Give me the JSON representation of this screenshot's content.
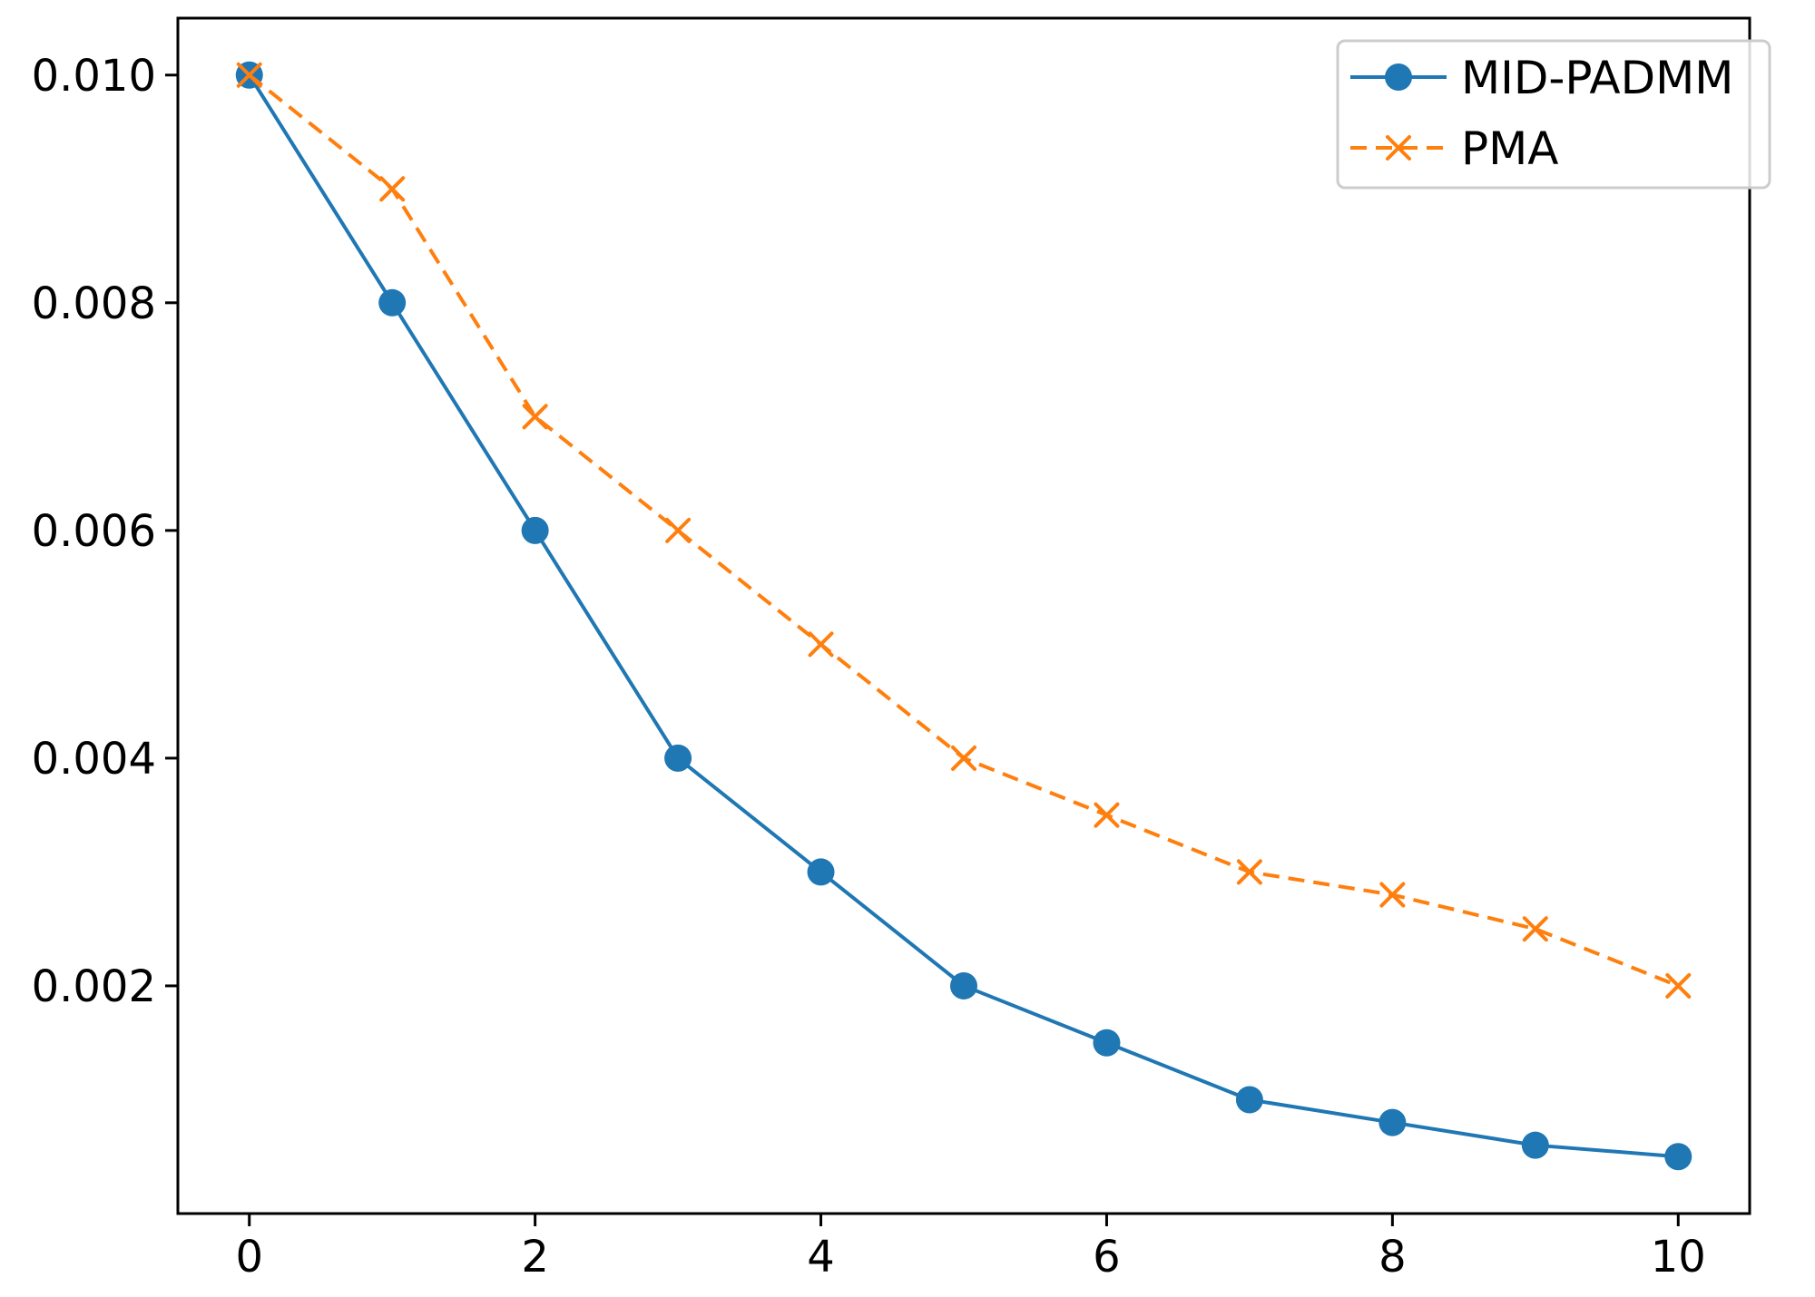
{
  "chart_data": {
    "type": "line",
    "title": "",
    "xlabel": "",
    "ylabel": "",
    "x": [
      0,
      1,
      2,
      3,
      4,
      5,
      6,
      7,
      8,
      9,
      10
    ],
    "xlim": [
      -0.5,
      10.5
    ],
    "ylim": [
      0.0,
      0.0105
    ],
    "x_ticks": [
      0,
      2,
      4,
      6,
      8,
      10
    ],
    "x_tick_labels": [
      "0",
      "2",
      "4",
      "6",
      "8",
      "10"
    ],
    "y_ticks": [
      0.002,
      0.004,
      0.006,
      0.008,
      0.01
    ],
    "y_tick_labels": [
      "0.002",
      "0.004",
      "0.006",
      "0.008",
      "0.010"
    ],
    "grid": false,
    "legend_position": "top-right",
    "series": [
      {
        "name": "MID-PADMM",
        "color": "#1f77b4",
        "line_style": "solid",
        "marker": "circle",
        "values": [
          0.01,
          0.008,
          0.006,
          0.004,
          0.003,
          0.002,
          0.0015,
          0.001,
          0.0008,
          0.0006,
          0.0005
        ]
      },
      {
        "name": "PMA",
        "color": "#ff7f0e",
        "line_style": "dashed",
        "marker": "x",
        "values": [
          0.01,
          0.009,
          0.007,
          0.006,
          0.005,
          0.004,
          0.0035,
          0.003,
          0.0028,
          0.0025,
          0.002
        ]
      }
    ]
  }
}
